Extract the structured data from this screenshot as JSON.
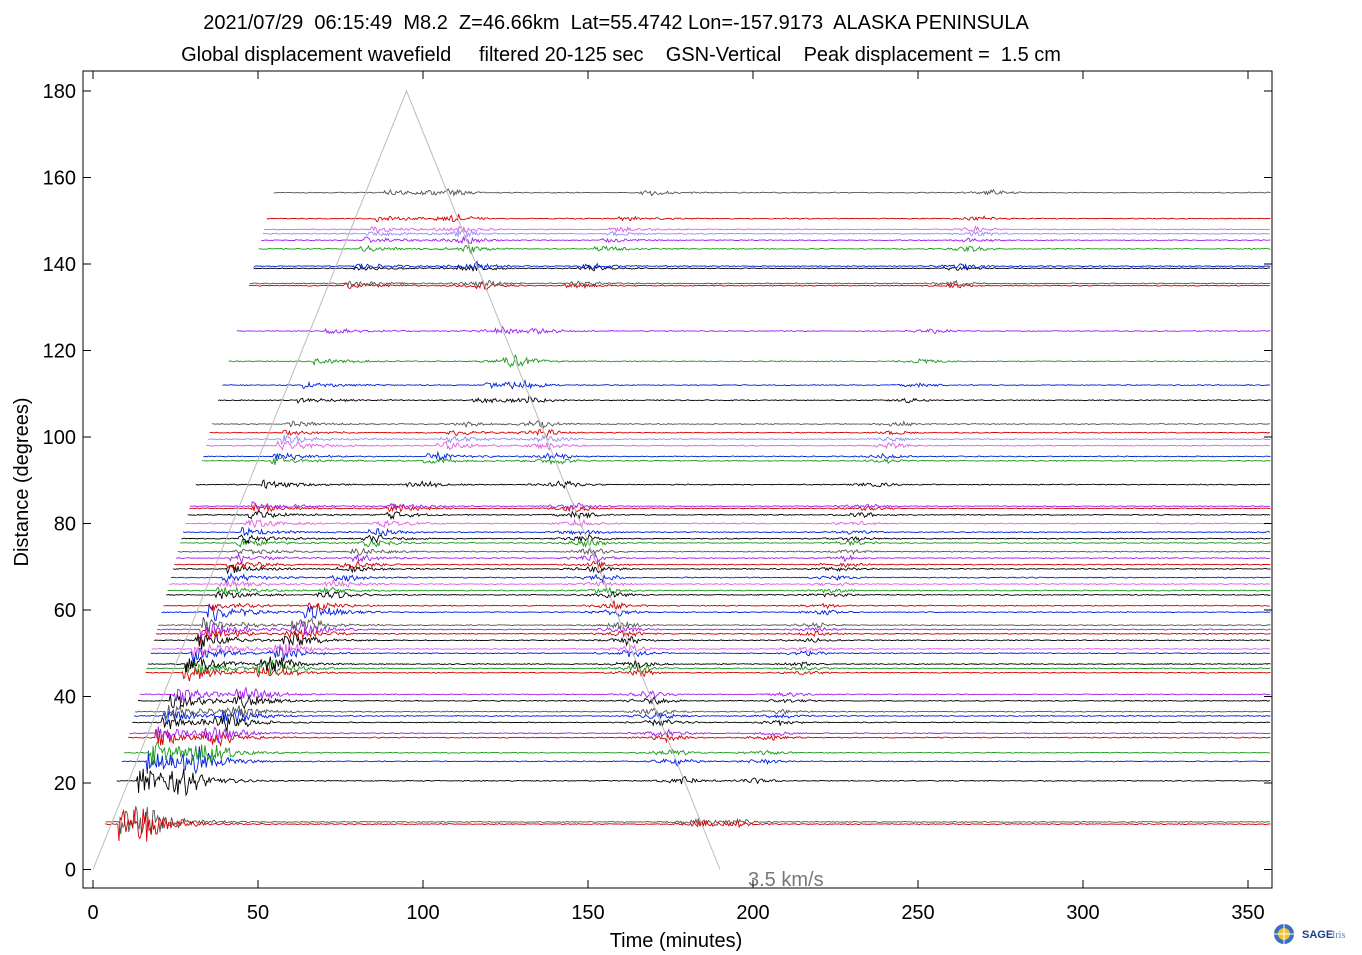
{
  "chart_data": {
    "type": "line",
    "title_line1": "2021/07/29  06:15:49  M8.2  Z=46.66km  Lat=55.4742 Lon=-157.9173  ALASKA PENINSULA",
    "title_line2": "Global displacement wavefield     filtered 20-125 sec    GSN-Vertical    Peak displacement =  1.5 cm",
    "xlabel": "Time (minutes)",
    "ylabel": "Distance (degrees)",
    "xlim": [
      -3,
      360
    ],
    "ylim": [
      -5,
      185
    ],
    "xticks": [
      0,
      50,
      100,
      150,
      200,
      250,
      300,
      350
    ],
    "yticks": [
      0,
      20,
      40,
      60,
      80,
      100,
      120,
      140,
      160,
      180
    ],
    "velocity_annotation": "3.5 km/s",
    "velocity_line": [
      [
        0,
        0
      ],
      [
        95,
        180
      ],
      [
        190,
        0
      ]
    ],
    "trace_colors": [
      "#000000",
      "#d40000",
      "#0020e0",
      "#1a9a1a",
      "#a020f0",
      "#555555",
      "#9090ff",
      "#e060e0"
    ],
    "stations": [
      {
        "dist": 11,
        "color": "#555555"
      },
      {
        "dist": 10.5,
        "color": "#d40000"
      },
      {
        "dist": 20.5,
        "color": "#000000"
      },
      {
        "dist": 25,
        "color": "#0020e0"
      },
      {
        "dist": 27,
        "color": "#1a9a1a"
      },
      {
        "dist": 30.5,
        "color": "#d40000"
      },
      {
        "dist": 31.5,
        "color": "#a020f0"
      },
      {
        "dist": 34,
        "color": "#000000"
      },
      {
        "dist": 35.5,
        "color": "#0020e0"
      },
      {
        "dist": 36.5,
        "color": "#555555"
      },
      {
        "dist": 39,
        "color": "#000000"
      },
      {
        "dist": 40.5,
        "color": "#a020f0"
      },
      {
        "dist": 45.5,
        "color": "#d40000"
      },
      {
        "dist": 46.5,
        "color": "#1a9a1a"
      },
      {
        "dist": 47.5,
        "color": "#000000"
      },
      {
        "dist": 50,
        "color": "#0020e0"
      },
      {
        "dist": 51,
        "color": "#e060e0"
      },
      {
        "dist": 53,
        "color": "#000000"
      },
      {
        "dist": 54.5,
        "color": "#d40000"
      },
      {
        "dist": 55.5,
        "color": "#a020f0"
      },
      {
        "dist": 56.5,
        "color": "#555555"
      },
      {
        "dist": 59.5,
        "color": "#0020e0"
      },
      {
        "dist": 61,
        "color": "#d40000"
      },
      {
        "dist": 63.5,
        "color": "#000000"
      },
      {
        "dist": 64.5,
        "color": "#1a9a1a"
      },
      {
        "dist": 66,
        "color": "#e060e0"
      },
      {
        "dist": 67.5,
        "color": "#0020e0"
      },
      {
        "dist": 69.5,
        "color": "#000000"
      },
      {
        "dist": 70.5,
        "color": "#d40000"
      },
      {
        "dist": 72,
        "color": "#a020f0"
      },
      {
        "dist": 73.5,
        "color": "#555555"
      },
      {
        "dist": 75.5,
        "color": "#1a9a1a"
      },
      {
        "dist": 76.5,
        "color": "#000000"
      },
      {
        "dist": 78,
        "color": "#0020e0"
      },
      {
        "dist": 80,
        "color": "#e060e0"
      },
      {
        "dist": 82,
        "color": "#000000"
      },
      {
        "dist": 83.5,
        "color": "#d40000"
      },
      {
        "dist": 84,
        "color": "#a020f0"
      },
      {
        "dist": 89,
        "color": "#000000"
      },
      {
        "dist": 94.5,
        "color": "#1a9a1a"
      },
      {
        "dist": 95.5,
        "color": "#0020e0"
      },
      {
        "dist": 98,
        "color": "#e060e0"
      },
      {
        "dist": 99.5,
        "color": "#9090ff"
      },
      {
        "dist": 101,
        "color": "#d40000"
      },
      {
        "dist": 103,
        "color": "#555555"
      },
      {
        "dist": 108.5,
        "color": "#000000"
      },
      {
        "dist": 112,
        "color": "#0020e0"
      },
      {
        "dist": 117.5,
        "color": "#1a9a1a"
      },
      {
        "dist": 124.5,
        "color": "#a020f0"
      },
      {
        "dist": 135,
        "color": "#d40000"
      },
      {
        "dist": 135.5,
        "color": "#555555"
      },
      {
        "dist": 139,
        "color": "#000000"
      },
      {
        "dist": 139.5,
        "color": "#0020e0"
      },
      {
        "dist": 143.5,
        "color": "#1a9a1a"
      },
      {
        "dist": 145.5,
        "color": "#a020f0"
      },
      {
        "dist": 147,
        "color": "#9090ff"
      },
      {
        "dist": 148,
        "color": "#e060e0"
      },
      {
        "dist": 150.5,
        "color": "#d40000"
      },
      {
        "dist": 156.5,
        "color": "#555555"
      }
    ]
  },
  "logo": {
    "text": "SAGE",
    "text2": "Iris"
  }
}
